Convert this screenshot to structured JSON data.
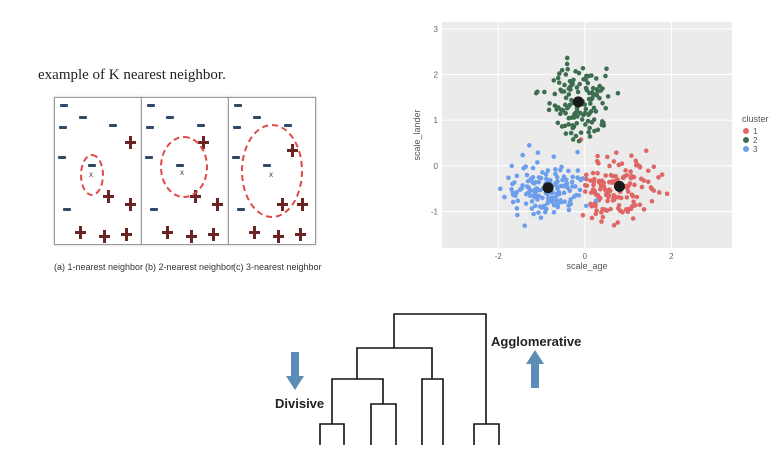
{
  "knn": {
    "title": "example of K nearest neighbor.",
    "panels": [
      {
        "caption": "(a) 1-nearest neighbor",
        "k": 1
      },
      {
        "caption": "(b) 2-nearest neighbor",
        "k": 2
      },
      {
        "caption": "(c) 3-nearest neighbor",
        "k": 3
      }
    ],
    "query_label": "x"
  },
  "chart_data": {
    "type": "scatter",
    "title": "",
    "xlabel": "scale_age",
    "ylabel": "scale_lander",
    "xlim": [
      -3.3,
      3.4
    ],
    "ylim": [
      -1.8,
      3.15
    ],
    "xticks": [
      -2,
      0,
      2
    ],
    "yticks": [
      -1,
      0,
      1,
      2,
      3
    ],
    "grid": true,
    "legend": {
      "title": "cluster",
      "placement": "right"
    },
    "series": [
      {
        "name": "1",
        "color": "#e06666",
        "centroid": [
          0.8,
          -0.45
        ]
      },
      {
        "name": "2",
        "color": "#3d6e4f",
        "centroid": [
          -0.15,
          1.4
        ]
      },
      {
        "name": "3",
        "color": "#6d9eeb",
        "centroid": [
          -0.85,
          -0.48
        ]
      }
    ]
  },
  "dendrogram": {
    "top_label": "Agglomerative",
    "bottom_label": "Divisive",
    "arrow_color": "#5b8db8"
  }
}
